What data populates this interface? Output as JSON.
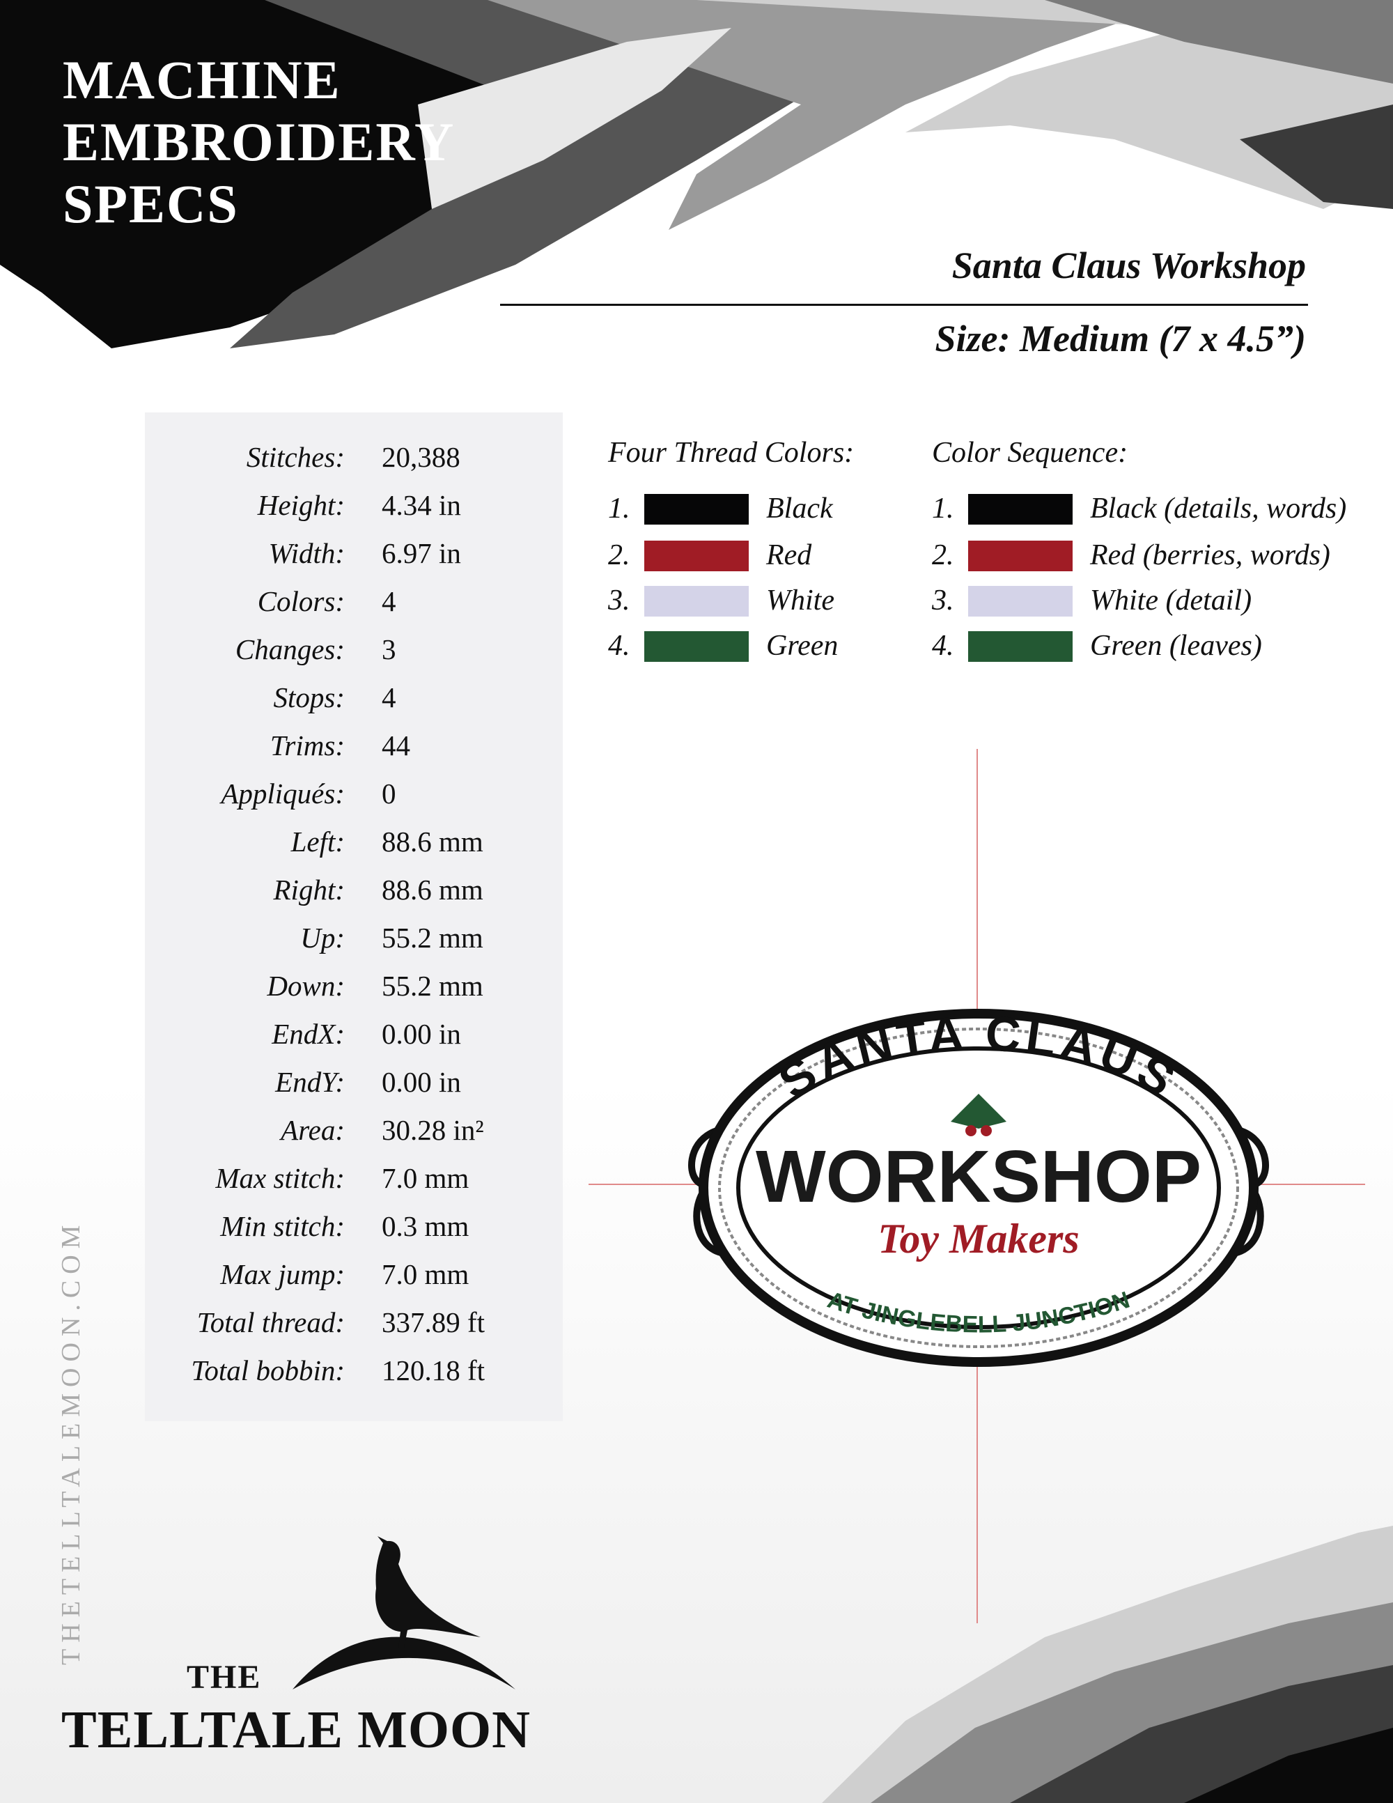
{
  "header": {
    "title_lines": [
      "MACHINE",
      "EMBROIDERY",
      "SPECS"
    ],
    "design_name": "Santa Claus Workshop",
    "design_size": "Size: Medium (7 x 4.5”)"
  },
  "specs": [
    {
      "label": "Stitches:",
      "value": "20,388"
    },
    {
      "label": "Height:",
      "value": "4.34 in"
    },
    {
      "label": "Width:",
      "value": "6.97 in"
    },
    {
      "label": "Colors:",
      "value": "4"
    },
    {
      "label": "Changes:",
      "value": "3"
    },
    {
      "label": "Stops:",
      "value": "4"
    },
    {
      "label": "Trims:",
      "value": "44"
    },
    {
      "label": "Appliqués:",
      "value": "0"
    },
    {
      "label": "Left:",
      "value": "88.6 mm"
    },
    {
      "label": "Right:",
      "value": "88.6 mm"
    },
    {
      "label": "Up:",
      "value": "55.2 mm"
    },
    {
      "label": "Down:",
      "value": "55.2 mm"
    },
    {
      "label": "EndX:",
      "value": "0.00 in"
    },
    {
      "label": "EndY:",
      "value": "0.00 in"
    },
    {
      "label": "Area:",
      "value": "30.28 in²"
    },
    {
      "label": "Max stitch:",
      "value": "7.0 mm"
    },
    {
      "label": "Min stitch:",
      "value": "0.3 mm"
    },
    {
      "label": "Max jump:",
      "value": "7.0 mm"
    },
    {
      "label": "Total thread:",
      "value": "337.89 ft"
    },
    {
      "label": "Total bobbin:",
      "value": "120.18 ft"
    }
  ],
  "thread_colors": {
    "heading": "Four Thread Colors:",
    "items": [
      {
        "num": "1.",
        "label": "Black",
        "color": "#060607"
      },
      {
        "num": "2.",
        "label": "Red",
        "color": "#a01c25"
      },
      {
        "num": "3.",
        "label": "White",
        "color": "#d4d3e8"
      },
      {
        "num": "4.",
        "label": "Green",
        "color": "#235833"
      }
    ]
  },
  "color_sequence": {
    "heading": "Color Sequence:",
    "items": [
      {
        "num": "1.",
        "label": "Black (details, words)",
        "color": "#060607"
      },
      {
        "num": "2.",
        "label": "Red (berries, words)",
        "color": "#a01c25"
      },
      {
        "num": "3.",
        "label": "White (detail)",
        "color": "#d4d3e8"
      },
      {
        "num": "4.",
        "label": "Green (leaves)",
        "color": "#235833"
      }
    ]
  },
  "design_preview": {
    "top_text": "SANTA CLAUS",
    "main_text": "WORKSHOP",
    "script_text": "Toy Makers",
    "bottom_text": "AT JINGLEBELL JUNCTION"
  },
  "footer": {
    "side_url": "THETELLTALEMOON.COM",
    "brand_the": "THE",
    "brand_name": "TELLTALE MOON"
  }
}
